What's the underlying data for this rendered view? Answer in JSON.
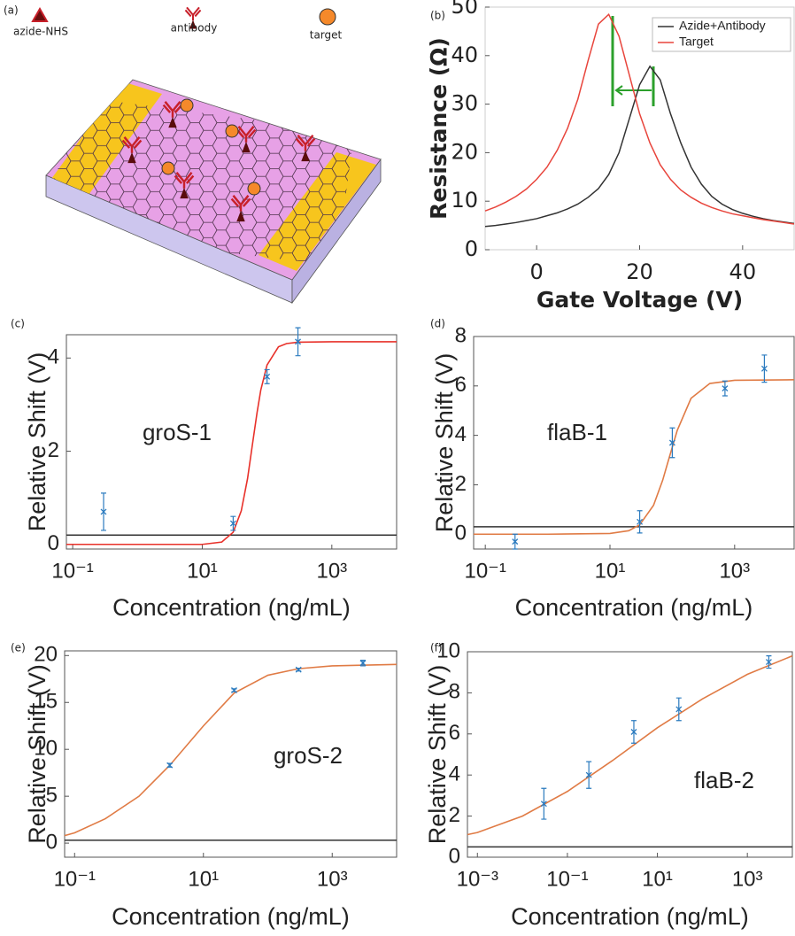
{
  "diagram": {
    "panel_label": "(a)",
    "legend": [
      "azide-NHS",
      "antibody",
      "target"
    ]
  },
  "chart_data": [
    {
      "type": "line",
      "panel_label": "(b)",
      "xlabel": "Gate Voltage (V)",
      "ylabel": "Resistance (Ω)",
      "xlim": [
        -10,
        50
      ],
      "ylim": [
        0,
        50
      ],
      "xticks": [
        0,
        20,
        40
      ],
      "yticks": [
        0,
        10,
        20,
        30,
        40,
        50
      ],
      "legend": "upper right",
      "x": [
        -10,
        -8,
        -6,
        -4,
        -2,
        0,
        2,
        4,
        6,
        8,
        10,
        12,
        14,
        16,
        18,
        20,
        22,
        24,
        26,
        28,
        30,
        32,
        34,
        36,
        38,
        40,
        42,
        44,
        46,
        48,
        50
      ],
      "series": [
        {
          "name": "Azide+Antibody",
          "color": "#333333",
          "values": [
            4.8,
            5.0,
            5.3,
            5.6,
            6.0,
            6.4,
            7.0,
            7.6,
            8.4,
            9.4,
            10.8,
            12.6,
            15.5,
            20,
            27,
            34,
            37.8,
            35,
            28,
            22,
            17,
            13.5,
            11,
            9.4,
            8.3,
            7.5,
            6.9,
            6.4,
            6.0,
            5.7,
            5.4
          ]
        },
        {
          "name": "Target",
          "color": "#e8453c",
          "values": [
            8,
            8.8,
            9.8,
            11,
            12.5,
            14.5,
            17,
            20.5,
            25,
            31,
            39,
            46.5,
            48.5,
            44,
            36,
            28,
            22,
            17.5,
            14.5,
            12.3,
            10.8,
            9.6,
            8.7,
            8,
            7.4,
            7,
            6.6,
            6.2,
            5.9,
            5.6,
            5.3
          ]
        }
      ]
    },
    {
      "type": "scatter",
      "panel_label": "(c)",
      "annotation": "groS-1",
      "xlabel": "Concentration (ng/mL)",
      "ylabel": "Relative Shift (V)",
      "xscale": "log",
      "xlim": [
        0.08,
        10000
      ],
      "ylim": [
        -0.1,
        4.5
      ],
      "xticks": [
        {
          "value": 0.1,
          "label": "10⁻¹"
        },
        {
          "value": 10,
          "label": "10¹"
        },
        {
          "value": 1000,
          "label": "10³"
        }
      ],
      "yticks": [
        0,
        2,
        4
      ],
      "points": {
        "color": "#2b7bbf",
        "x": [
          0.3,
          30,
          100,
          300
        ],
        "values": [
          0.7,
          0.45,
          3.6,
          4.35
        ],
        "errors": [
          0.4,
          0.15,
          0.15,
          0.3
        ]
      },
      "fit": {
        "color": "#e8312a",
        "x": [
          0.08,
          1,
          10,
          20,
          30,
          40,
          50,
          60,
          70,
          80,
          100,
          150,
          200,
          300,
          1000,
          10000
        ],
        "values": [
          0,
          0,
          0,
          0.05,
          0.26,
          0.72,
          1.41,
          2.18,
          2.82,
          3.31,
          3.85,
          4.24,
          4.31,
          4.34,
          4.35,
          4.35
        ]
      },
      "threshold": {
        "value": 0.2,
        "color": "#333333"
      }
    },
    {
      "type": "scatter",
      "panel_label": "(d)",
      "annotation": "flaB-1",
      "xlabel": "Concentration (ng/mL)",
      "ylabel": "Relative Shift (V)",
      "xscale": "log",
      "xlim": [
        0.065,
        9000
      ],
      "ylim": [
        -0.6,
        8
      ],
      "xticks": [
        {
          "value": 0.1,
          "label": "10⁻¹"
        },
        {
          "value": 10,
          "label": "10¹"
        },
        {
          "value": 1000,
          "label": "10³"
        }
      ],
      "yticks": [
        0,
        2,
        4,
        6,
        8
      ],
      "points": {
        "color": "#2b7bbf",
        "x": [
          0.3,
          30,
          100,
          700,
          3000
        ],
        "values": [
          -0.3,
          0.5,
          3.7,
          5.9,
          6.7
        ],
        "errors": [
          0.3,
          0.45,
          0.6,
          0.3,
          0.55
        ]
      },
      "fit": {
        "color": "#e07b45",
        "x": [
          0.065,
          1,
          10,
          20,
          30,
          50,
          70,
          90,
          120,
          200,
          400,
          1000,
          9000
        ],
        "values": [
          0,
          0,
          0.03,
          0.14,
          0.38,
          1.17,
          2.18,
          3.13,
          4.2,
          5.5,
          6.1,
          6.23,
          6.25
        ]
      },
      "threshold": {
        "value": 0.3,
        "color": "#333333"
      }
    },
    {
      "type": "scatter",
      "panel_label": "(e)",
      "annotation": "groS-2",
      "xlabel": "Concentration (ng/mL)",
      "ylabel": "Relative Shift (V)",
      "xscale": "log",
      "xlim": [
        0.07,
        10000
      ],
      "ylim": [
        -1.5,
        20.5
      ],
      "xticks": [
        {
          "value": 0.1,
          "label": "10⁻¹"
        },
        {
          "value": 10,
          "label": "10¹"
        },
        {
          "value": 1000,
          "label": "10³"
        }
      ],
      "yticks": [
        0,
        5,
        10,
        15,
        20
      ],
      "points": {
        "color": "#2b7bbf",
        "x": [
          3,
          30,
          300,
          3000
        ],
        "values": [
          8.3,
          16.3,
          18.5,
          19.2
        ],
        "errors": [
          0.2,
          0.15,
          0.15,
          0.3
        ]
      },
      "fit": {
        "color": "#e07b45",
        "x": [
          0.07,
          0.1,
          0.3,
          1,
          3,
          10,
          30,
          100,
          300,
          1000,
          10000
        ],
        "values": [
          0.8,
          1.1,
          2.6,
          5,
          8.3,
          12.5,
          16,
          17.9,
          18.6,
          18.9,
          19.05
        ]
      },
      "threshold": {
        "value": 0.3,
        "color": "#333333"
      }
    },
    {
      "type": "scatter",
      "panel_label": "(f)",
      "annotation": "flaB-2",
      "xlabel": "Concentration (ng/mL)",
      "ylabel": "Relative Shift (V)",
      "xscale": "log",
      "xlim": [
        0.0006,
        10000
      ],
      "ylim": [
        0,
        10
      ],
      "xticks": [
        {
          "value": 0.001,
          "label": "10⁻³"
        },
        {
          "value": 0.1,
          "label": "10⁻¹"
        },
        {
          "value": 10,
          "label": "10¹"
        },
        {
          "value": 1000,
          "label": "10³"
        }
      ],
      "yticks": [
        0,
        2,
        4,
        6,
        8,
        10
      ],
      "points": {
        "color": "#2b7bbf",
        "x": [
          0.03,
          0.3,
          3,
          30,
          3000
        ],
        "values": [
          2.6,
          4.0,
          6.1,
          7.2,
          9.5
        ],
        "errors": [
          0.75,
          0.65,
          0.55,
          0.55,
          0.3
        ]
      },
      "fit": {
        "color": "#e07b45",
        "x": [
          0.0006,
          0.001,
          0.01,
          0.1,
          1,
          10,
          100,
          1000,
          10000
        ],
        "values": [
          1.1,
          1.2,
          2.0,
          3.2,
          4.7,
          6.3,
          7.7,
          8.9,
          9.8
        ]
      },
      "threshold": {
        "value": 0.5,
        "color": "#333333"
      }
    }
  ]
}
